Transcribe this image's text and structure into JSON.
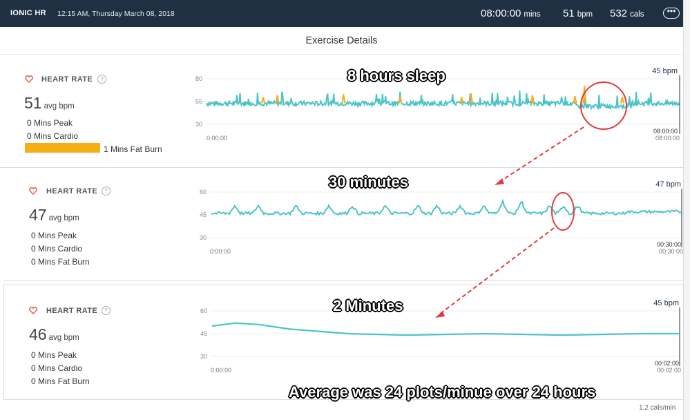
{
  "header": {
    "app_title": "IONIC HR",
    "datetime": "12:15 AM, Thursday March 08, 2018",
    "duration_value": "08:00:00",
    "duration_unit": "mins",
    "bpm_value": "51",
    "bpm_unit": "bpm",
    "cals_value": "532",
    "cals_unit": "cals",
    "more_icon": "ellipsis-icon"
  },
  "subheader": {
    "title": "Exercise Details"
  },
  "panels": [
    {
      "label": "HEART RATE",
      "avg_value": "51",
      "avg_unit": "avg bpm",
      "peak": "0 Mins Peak",
      "cardio": "0 Mins Cardio",
      "fatburn": "1 Mins Fat Burn",
      "fatburn_color": "#f6ae14",
      "peak_bpm": "45 bpm",
      "ticks": [
        "80",
        "55",
        "30"
      ],
      "start_time": "0:00:00",
      "end_time_bold": "08:00:00",
      "end_time": "08:00:00"
    },
    {
      "label": "HEART RATE",
      "avg_value": "47",
      "avg_unit": "avg bpm",
      "peak": "0 Mins Peak",
      "cardio": "0 Mins Cardio",
      "fatburn": "0 Mins Fat Burn",
      "peak_bpm": "47 bpm",
      "ticks": [
        "60",
        "45",
        "30"
      ],
      "start_time": "0:00:00",
      "end_time_bold": "00:30:00",
      "end_time": "00:30:00"
    },
    {
      "label": "HEART RATE",
      "avg_value": "46",
      "avg_unit": "avg bpm",
      "peak": "0 Mins Peak",
      "cardio": "0 Mins Cardio",
      "fatburn": "0 Mins Fat Burn",
      "peak_bpm": "45 bpm",
      "ticks": [
        "60",
        "45",
        "30"
      ],
      "start_time": "0:00:00",
      "end_time_bold": "00:02:00",
      "end_time": "00:02:00"
    }
  ],
  "annotations": {
    "sleep": "8 hours sleep",
    "thirty": "30 minutes",
    "two": "2 Minutes",
    "average": "Average was 24 plots/minue over 24 hours"
  },
  "bottom_snippet": "1.2 cals/min",
  "colors": {
    "line": "#4bc4c8",
    "fatburn": "#f6ae14",
    "header_bg": "#1e3042",
    "annotation_red": "#e23a3a"
  },
  "chart_data": [
    {
      "type": "line",
      "name": "heart-rate-8-hours",
      "y_ticks": [
        30,
        55,
        80
      ],
      "ylim": [
        30,
        80
      ],
      "x_range": [
        "0:00:00",
        "08:00:00"
      ],
      "approx_level_bpm": 53,
      "highlight_color": "#f6ae14"
    },
    {
      "type": "line",
      "name": "heart-rate-30-minutes",
      "y_ticks": [
        30,
        45,
        60
      ],
      "ylim": [
        30,
        60
      ],
      "x_range": [
        "0:00:00",
        "00:30:00"
      ],
      "approx_level_bpm": 46
    },
    {
      "type": "line",
      "name": "heart-rate-2-minutes",
      "y_ticks": [
        30,
        45,
        60
      ],
      "ylim": [
        30,
        60
      ],
      "x_range": [
        "0:00:00",
        "00:02:00"
      ],
      "x": [
        0,
        6,
        12,
        20,
        35,
        50,
        70,
        90,
        110,
        120
      ],
      "y": [
        50,
        52,
        51,
        48,
        45,
        44,
        45,
        44,
        45,
        45
      ]
    }
  ]
}
